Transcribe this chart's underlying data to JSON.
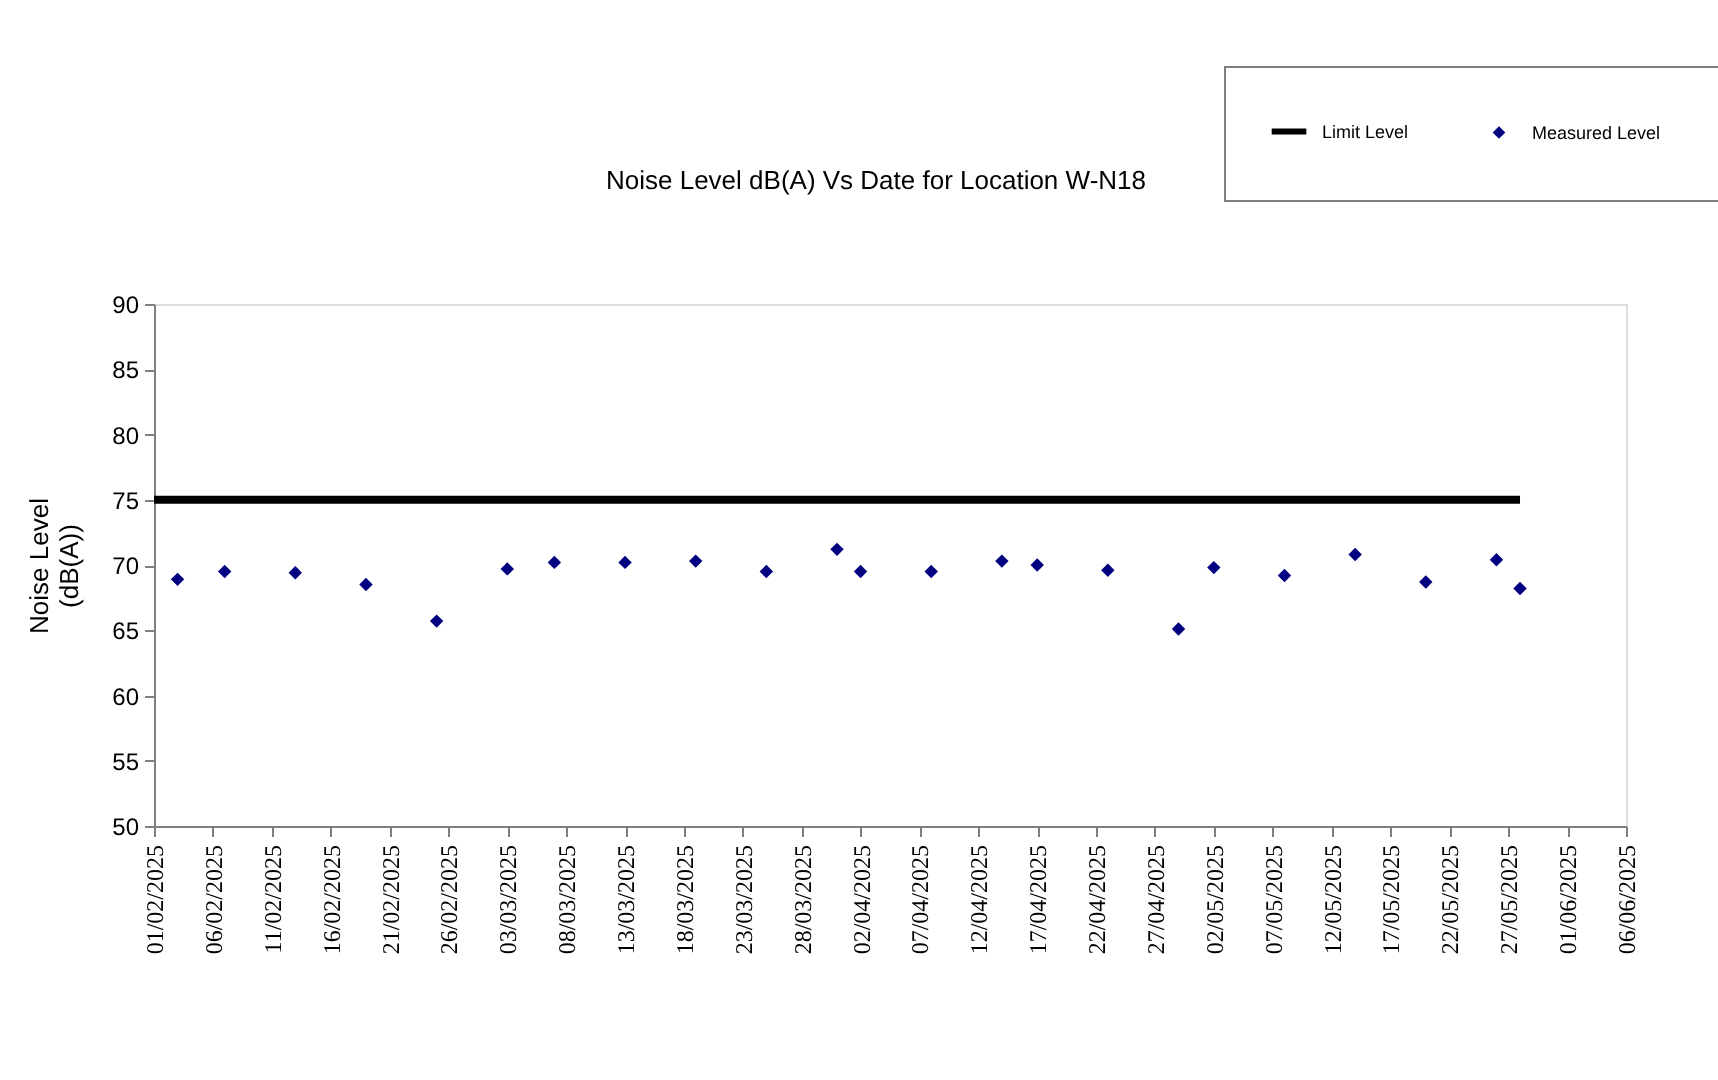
{
  "chart_data": {
    "type": "scatter",
    "title": "Noise Level dB(A) Vs Date for Location W-N18",
    "ylabel": "Noise Level\n(dB(A))",
    "xlim": [
      "2025-02-01",
      "2025-06-06"
    ],
    "xticks": [
      {
        "value": "2025-02-01",
        "label": "01/02/2025"
      },
      {
        "value": "2025-02-06",
        "label": "06/02/2025"
      },
      {
        "value": "2025-02-11",
        "label": "11/02/2025"
      },
      {
        "value": "2025-02-16",
        "label": "16/02/2025"
      },
      {
        "value": "2025-02-21",
        "label": "21/02/2025"
      },
      {
        "value": "2025-02-26",
        "label": "26/02/2025"
      },
      {
        "value": "2025-03-03",
        "label": "03/03/2025"
      },
      {
        "value": "2025-03-08",
        "label": "08/03/2025"
      },
      {
        "value": "2025-03-13",
        "label": "13/03/2025"
      },
      {
        "value": "2025-03-18",
        "label": "18/03/2025"
      },
      {
        "value": "2025-03-23",
        "label": "23/03/2025"
      },
      {
        "value": "2025-03-28",
        "label": "28/03/2025"
      },
      {
        "value": "2025-04-02",
        "label": "02/04/2025"
      },
      {
        "value": "2025-04-07",
        "label": "07/04/2025"
      },
      {
        "value": "2025-04-12",
        "label": "12/04/2025"
      },
      {
        "value": "2025-04-17",
        "label": "17/04/2025"
      },
      {
        "value": "2025-04-22",
        "label": "22/04/2025"
      },
      {
        "value": "2025-04-27",
        "label": "27/04/2025"
      },
      {
        "value": "2025-05-02",
        "label": "02/05/2025"
      },
      {
        "value": "2025-05-07",
        "label": "07/05/2025"
      },
      {
        "value": "2025-05-12",
        "label": "12/05/2025"
      },
      {
        "value": "2025-05-17",
        "label": "17/05/2025"
      },
      {
        "value": "2025-05-22",
        "label": "22/05/2025"
      },
      {
        "value": "2025-05-27",
        "label": "27/05/2025"
      },
      {
        "value": "2025-06-01",
        "label": "01/06/2025"
      },
      {
        "value": "2025-06-06",
        "label": "06/06/2025"
      }
    ],
    "ylim": [
      50,
      90
    ],
    "yticks": [
      50,
      55,
      60,
      65,
      70,
      75,
      80,
      85,
      90
    ],
    "legend": "top right",
    "series": [
      {
        "name": "Limit Level",
        "type": "line",
        "color": "#000000",
        "line_style": "solid",
        "x": [
          "2025-02-01",
          "2025-05-28"
        ],
        "values": [
          75,
          75
        ]
      },
      {
        "name": "Measured Level",
        "color": "#000080",
        "marker": "diamond",
        "x": [
          "2025-02-03",
          "2025-02-07",
          "2025-02-13",
          "2025-02-19",
          "2025-02-25",
          "2025-03-03",
          "2025-03-07",
          "2025-03-13",
          "2025-03-19",
          "2025-03-25",
          "2025-03-31",
          "2025-04-02",
          "2025-04-08",
          "2025-04-14",
          "2025-04-17",
          "2025-04-23",
          "2025-04-29",
          "2025-05-02",
          "2025-05-08",
          "2025-05-14",
          "2025-05-20",
          "2025-05-26",
          "2025-05-28"
        ],
        "values": [
          68.9,
          69.5,
          69.4,
          68.5,
          65.7,
          69.7,
          70.2,
          70.2,
          70.3,
          69.5,
          71.2,
          69.5,
          69.5,
          70.3,
          70.0,
          69.6,
          65.1,
          69.8,
          69.2,
          70.8,
          68.7,
          70.4,
          68.2
        ]
      }
    ]
  }
}
